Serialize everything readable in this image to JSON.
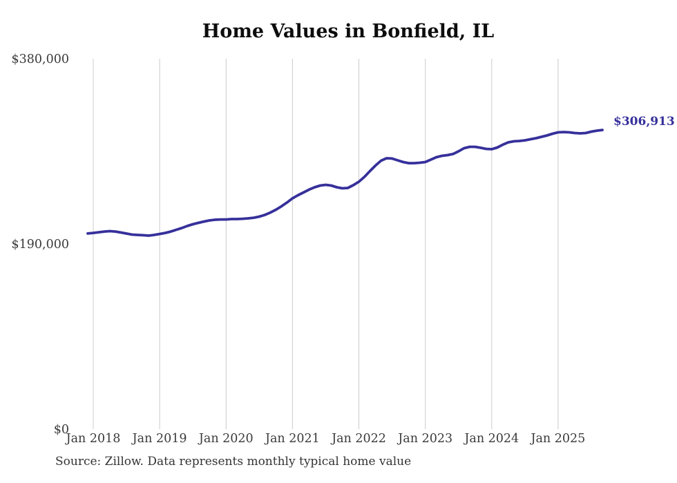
{
  "page": {
    "background_color": "#ffffff"
  },
  "chart_data": {
    "type": "line",
    "title": "Home Values in Bonfield, IL",
    "source_note": "Source: Zillow. Data represents monthly typical home value",
    "series_name": "Typical home value",
    "frequency": "monthly",
    "start_month": "Dec 2017",
    "end_month": "Sep 2025",
    "values": [
      200700,
      201300,
      202000,
      202700,
      203100,
      202700,
      201700,
      200600,
      199600,
      199200,
      198900,
      198500,
      199200,
      200200,
      201300,
      202700,
      204500,
      206300,
      208400,
      210200,
      211600,
      213000,
      214100,
      214800,
      215100,
      215100,
      215500,
      215500,
      215800,
      216200,
      216900,
      218000,
      219800,
      222200,
      225100,
      228600,
      232500,
      236800,
      240000,
      242800,
      245700,
      248100,
      249900,
      250600,
      249900,
      248100,
      247100,
      247400,
      250300,
      253800,
      258800,
      264800,
      270500,
      275400,
      277900,
      277600,
      275800,
      274000,
      272900,
      272900,
      273300,
      274000,
      276500,
      279000,
      280400,
      281100,
      282200,
      285000,
      288200,
      289600,
      289600,
      288600,
      287500,
      287200,
      288900,
      291800,
      294200,
      295300,
      295600,
      296300,
      297400,
      298500,
      299900,
      301300,
      303100,
      304500,
      304800,
      304500,
      303800,
      303400,
      303800,
      305200,
      306200,
      306913
    ],
    "x_tick_labels": [
      "Jan 2018",
      "Jan 2019",
      "Jan 2020",
      "Jan 2021",
      "Jan 2022",
      "Jan 2023",
      "Jan 2024",
      "Jan 2025"
    ],
    "y_ticks": [
      {
        "label": "$0",
        "value": 0
      },
      {
        "label": "$190,000",
        "value": 190000
      },
      {
        "label": "$380,000",
        "value": 380000
      }
    ],
    "ylim": [
      0,
      380000
    ],
    "end_label": "$306,913",
    "legend": "none",
    "grid": "vertical-only",
    "colors": {
      "line": "#36309B",
      "end_label": "#36309B",
      "gridline": "#cccccc",
      "axis_text": "#3a3a3a",
      "title_text": "#0d0d0d"
    }
  }
}
